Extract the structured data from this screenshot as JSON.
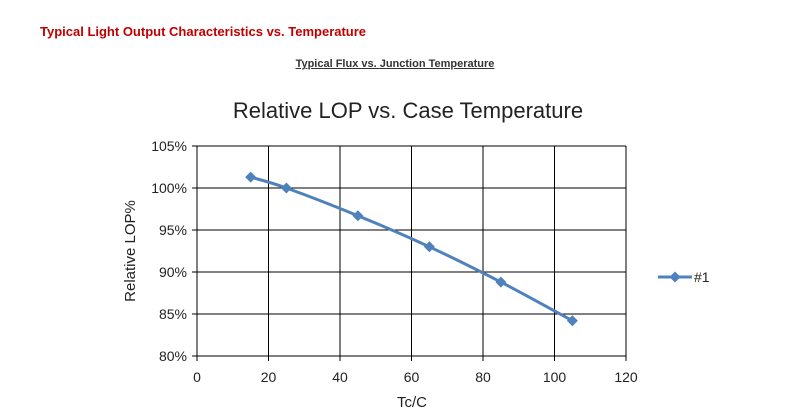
{
  "header": {
    "section_title": "Typical Light Output Characteristics vs. Temperature",
    "subtitle": "Typical Flux vs. Junction Temperature"
  },
  "chart_data": {
    "type": "line",
    "title": "Relative LOP vs. Case Temperature",
    "xlabel": "Tc/C",
    "ylabel": "Relative LOP%",
    "xlim": [
      0,
      120
    ],
    "ylim": [
      80,
      105
    ],
    "xticks": [
      "0",
      "20",
      "40",
      "60",
      "80",
      "100",
      "120"
    ],
    "yticks": [
      "80%",
      "85%",
      "90%",
      "95%",
      "100%",
      "105%"
    ],
    "grid": true,
    "legend_position": "right",
    "series": [
      {
        "name": "#1",
        "color": "#4f81bd",
        "marker": "diamond",
        "x": [
          15,
          25,
          45,
          65,
          85,
          105
        ],
        "y": [
          101.3,
          100.0,
          96.7,
          93.0,
          88.8,
          84.2
        ]
      }
    ]
  }
}
